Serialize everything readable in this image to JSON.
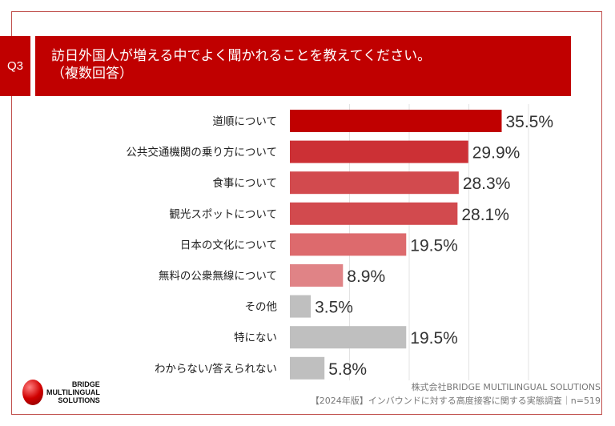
{
  "question": {
    "number": "Q3",
    "line1": "訪日外国人が増える中でよく聞かれることを教えてください。",
    "line2": "（複数回答）"
  },
  "chart_data": {
    "type": "bar",
    "orientation": "horizontal",
    "title": "訪日外国人が増える中でよく聞かれることを教えてください。（複数回答）",
    "categories": [
      "道順について",
      "公共交通機関の乗り方について",
      "食事について",
      "観光スポットについて",
      "日本の文化について",
      "無料の公衆無線について",
      "その他",
      "特にない",
      "わからない/答えられない"
    ],
    "values": [
      35.5,
      29.9,
      28.3,
      28.1,
      19.5,
      8.9,
      3.5,
      19.5,
      5.8
    ],
    "labels": [
      "35.5%",
      "29.9%",
      "28.3%",
      "28.1%",
      "19.5%",
      "8.9%",
      "3.5%",
      "19.5%",
      "5.8%"
    ],
    "colors": [
      "#c00000",
      "#cc3035",
      "#d24a4e",
      "#d24a4e",
      "#dd6a6d",
      "#e08386",
      "#bfbfbf",
      "#bfbfbf",
      "#bfbfbf"
    ],
    "xlim": [
      0,
      40
    ],
    "grid": true,
    "xlabel": "",
    "ylabel": ""
  },
  "logo": {
    "line1": "BRIDGE",
    "line2": "MULTILINGUAL",
    "line3": "SOLUTIONS"
  },
  "credit": {
    "company": "株式会社BRIDGE MULTILINGUAL SOLUTIONS",
    "source": "【2024年版】インバウンドに対する高度接客に関する実態調査｜n=519"
  }
}
